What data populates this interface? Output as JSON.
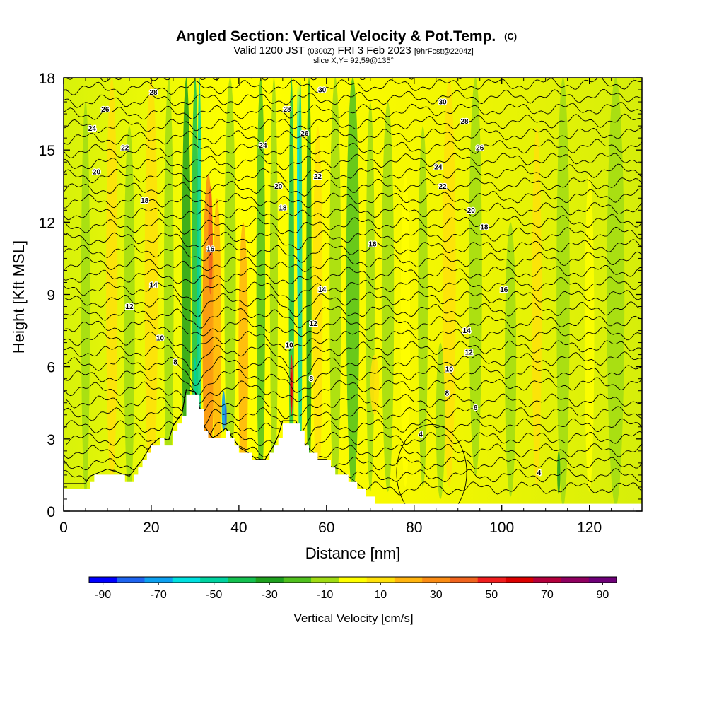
{
  "title": "Angled Section: Vertical Velocity & Pot.Temp.",
  "title_mark": "(C)",
  "subtitle_main": "Valid 1200 JST",
  "subtitle_utc": "(0300Z)",
  "subtitle_date": "FRI 3 Feb 2023",
  "subtitle_fcst": "[9hrFcst@2204z]",
  "slice_text": "slice X,Y= 92,59@135°",
  "chart_data": {
    "type": "heatmap",
    "xlabel": "Distance [nm]",
    "ylabel": "Height [Kft MSL]",
    "xlim": [
      0,
      132
    ],
    "ylim": [
      0,
      18
    ],
    "x_ticks": [
      0,
      20,
      40,
      60,
      80,
      100,
      120
    ],
    "y_ticks": [
      0,
      3,
      6,
      9,
      12,
      15,
      18
    ],
    "colorbar": {
      "title": "Vertical Velocity [cm/s]",
      "tick_labels": [
        "-90",
        "-70",
        "-50",
        "-30",
        "-10",
        "10",
        "30",
        "50",
        "70",
        "90"
      ],
      "colors": [
        "#0000ff",
        "#1e64f0",
        "#0ca0f0",
        "#00e0e0",
        "#00d2a0",
        "#14c050",
        "#1ea01e",
        "#50c01e",
        "#a0dc14",
        "#ffff00",
        "#ffe10a",
        "#ffb40f",
        "#fa8c14",
        "#f0641e",
        "#f01e1e",
        "#dc0000",
        "#b4003c",
        "#900060",
        "#6e0078"
      ]
    },
    "terrain": [
      [
        0,
        1.0
      ],
      [
        5,
        1.0
      ],
      [
        6,
        1.3
      ],
      [
        10,
        1.6
      ],
      [
        15,
        1.3
      ],
      [
        18,
        2.0
      ],
      [
        20,
        2.6
      ],
      [
        22,
        2.9
      ],
      [
        24,
        2.8
      ],
      [
        25,
        3.4
      ],
      [
        27,
        3.9
      ],
      [
        28,
        4.9
      ],
      [
        30,
        4.8
      ],
      [
        31,
        4.2
      ],
      [
        32,
        3.4
      ],
      [
        34,
        2.9
      ],
      [
        35,
        3.0
      ],
      [
        37,
        3.3
      ],
      [
        39,
        2.8
      ],
      [
        40,
        2.5
      ],
      [
        42,
        2.3
      ],
      [
        44,
        2.0
      ],
      [
        46,
        2.0
      ],
      [
        47,
        2.3
      ],
      [
        48,
        2.6
      ],
      [
        49,
        3.0
      ],
      [
        50,
        3.6
      ],
      [
        53,
        3.6
      ],
      [
        54,
        3.2
      ],
      [
        55,
        2.6
      ],
      [
        57,
        2.3
      ],
      [
        58,
        2.0
      ],
      [
        60,
        2.0
      ],
      [
        61,
        1.7
      ],
      [
        63,
        1.6
      ],
      [
        65,
        1.3
      ],
      [
        67,
        1.0
      ],
      [
        69,
        0.7
      ],
      [
        71,
        0.4
      ],
      [
        73,
        0.3
      ],
      [
        132,
        0.3
      ]
    ],
    "contour_labels": [
      {
        "x": 20.5,
        "y": 17.4,
        "v": "28"
      },
      {
        "x": 9.5,
        "y": 16.7,
        "v": "26"
      },
      {
        "x": 6.5,
        "y": 15.9,
        "v": "24"
      },
      {
        "x": 14,
        "y": 15.1,
        "v": "22"
      },
      {
        "x": 7.5,
        "y": 14.1,
        "v": "20"
      },
      {
        "x": 18.5,
        "y": 12.9,
        "v": "18"
      },
      {
        "x": 33.5,
        "y": 10.9,
        "v": "16"
      },
      {
        "x": 20.5,
        "y": 9.4,
        "v": "14"
      },
      {
        "x": 15,
        "y": 8.5,
        "v": "12"
      },
      {
        "x": 22,
        "y": 7.2,
        "v": "10"
      },
      {
        "x": 25.5,
        "y": 6.2,
        "v": "8"
      },
      {
        "x": 59,
        "y": 17.5,
        "v": "30"
      },
      {
        "x": 51,
        "y": 16.7,
        "v": "28"
      },
      {
        "x": 55,
        "y": 15.7,
        "v": "26"
      },
      {
        "x": 45.5,
        "y": 15.2,
        "v": "24"
      },
      {
        "x": 58,
        "y": 13.9,
        "v": "22"
      },
      {
        "x": 49,
        "y": 13.5,
        "v": "20"
      },
      {
        "x": 50,
        "y": 12.6,
        "v": "18"
      },
      {
        "x": 59,
        "y": 9.2,
        "v": "14"
      },
      {
        "x": 57,
        "y": 7.8,
        "v": "12"
      },
      {
        "x": 51.5,
        "y": 6.9,
        "v": "10"
      },
      {
        "x": 56.5,
        "y": 5.5,
        "v": "8"
      },
      {
        "x": 70.5,
        "y": 11.1,
        "v": "16"
      },
      {
        "x": 86.5,
        "y": 17.0,
        "v": "30"
      },
      {
        "x": 91.5,
        "y": 16.2,
        "v": "28"
      },
      {
        "x": 95,
        "y": 15.1,
        "v": "26"
      },
      {
        "x": 85.5,
        "y": 14.3,
        "v": "24"
      },
      {
        "x": 86.5,
        "y": 13.5,
        "v": "22"
      },
      {
        "x": 93,
        "y": 12.5,
        "v": "20"
      },
      {
        "x": 96,
        "y": 11.8,
        "v": "18"
      },
      {
        "x": 100.5,
        "y": 9.2,
        "v": "16"
      },
      {
        "x": 92,
        "y": 7.5,
        "v": "14"
      },
      {
        "x": 92.5,
        "y": 6.6,
        "v": "12"
      },
      {
        "x": 88,
        "y": 5.9,
        "v": "10"
      },
      {
        "x": 87.5,
        "y": 4.9,
        "v": "8"
      },
      {
        "x": 94,
        "y": 4.3,
        "v": "6"
      },
      {
        "x": 81.5,
        "y": 3.2,
        "v": "4"
      },
      {
        "x": 108.5,
        "y": 1.6,
        "v": "4"
      }
    ]
  }
}
